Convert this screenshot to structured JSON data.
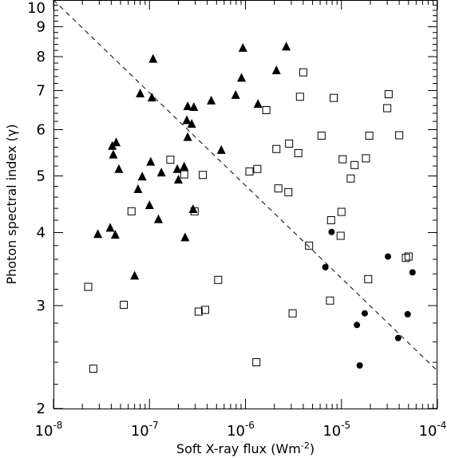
{
  "chart_data": {
    "type": "scatter",
    "title": "",
    "xlabel": "Soft X-ray flux  (Wm",
    "xlabel_sup": "-2",
    "xlabel_close": ")",
    "ylabel": "Photon spectral index (γ)",
    "x_scale": "log",
    "y_scale": "log",
    "xlim": [
      1e-08,
      0.0001
    ],
    "ylim": [
      2,
      10
    ],
    "x_ticks": [
      {
        "value": 1e-08,
        "base": "10",
        "exp": "-8"
      },
      {
        "value": 1e-07,
        "base": "10",
        "exp": "-7"
      },
      {
        "value": 1e-06,
        "base": "10",
        "exp": "-6"
      },
      {
        "value": 1e-05,
        "base": "10",
        "exp": "-5"
      },
      {
        "value": 0.0001,
        "base": "10",
        "exp": "-4"
      }
    ],
    "y_ticks": [
      {
        "value": 2,
        "label": "2"
      },
      {
        "value": 3,
        "label": "3"
      },
      {
        "value": 4,
        "label": "4"
      },
      {
        "value": 5,
        "label": "5"
      },
      {
        "value": 6,
        "label": "6"
      },
      {
        "value": 7,
        "label": "7"
      },
      {
        "value": 8,
        "label": "8"
      },
      {
        "value": 9,
        "label": "9"
      },
      {
        "value": 10,
        "label": "10"
      }
    ],
    "grid": false,
    "fit_line": {
      "style": "dashed",
      "points": [
        [
          1e-08,
          10.0
        ],
        [
          0.0001,
          2.32
        ]
      ]
    },
    "series": [
      {
        "marker": "filled-triangle",
        "color": "#000000",
        "points": [
          [
            1.09e-07,
            7.92
          ],
          [
            9.4e-07,
            8.27
          ],
          [
            2.66e-06,
            8.31
          ],
          [
            2.1e-06,
            7.57
          ],
          [
            9.1e-07,
            7.35
          ],
          [
            8e-08,
            6.91
          ],
          [
            1.06e-07,
            6.8
          ],
          [
            7.9e-07,
            6.87
          ],
          [
            2.5e-07,
            6.57
          ],
          [
            2.9e-07,
            6.55
          ],
          [
            4.4e-07,
            6.72
          ],
          [
            1.35e-06,
            6.63
          ],
          [
            2.45e-07,
            6.22
          ],
          [
            2.75e-07,
            6.13
          ],
          [
            2.5e-07,
            5.82
          ],
          [
            5.6e-07,
            5.53
          ],
          [
            4.5e-08,
            5.7
          ],
          [
            4.1e-08,
            5.62
          ],
          [
            4.2e-08,
            5.43
          ],
          [
            4.8e-08,
            5.13
          ],
          [
            1.03e-07,
            5.28
          ],
          [
            1.33e-07,
            5.06
          ],
          [
            1.95e-07,
            5.13
          ],
          [
            2.3e-07,
            5.18
          ],
          [
            8.4e-08,
            4.98
          ],
          [
            2e-07,
            4.92
          ],
          [
            7.6e-08,
            4.74
          ],
          [
            1e-07,
            4.45
          ],
          [
            2.85e-07,
            4.38
          ],
          [
            1.24e-07,
            4.21
          ],
          [
            3.9e-08,
            4.07
          ],
          [
            2.9e-08,
            3.97
          ],
          [
            4.4e-08,
            3.96
          ],
          [
            2.35e-07,
            3.92
          ],
          [
            7e-08,
            3.37
          ]
        ]
      },
      {
        "marker": "open-square",
        "color": "#000000",
        "points": [
          [
            4e-06,
            7.52
          ],
          [
            3.7e-06,
            6.83
          ],
          [
            8.3e-06,
            6.8
          ],
          [
            3.1e-05,
            6.9
          ],
          [
            3e-05,
            6.53
          ],
          [
            1.65e-06,
            6.48
          ],
          [
            6.2e-06,
            5.86
          ],
          [
            1.95e-05,
            5.86
          ],
          [
            4e-05,
            5.87
          ],
          [
            2.85e-06,
            5.68
          ],
          [
            3.55e-06,
            5.47
          ],
          [
            2.1e-06,
            5.56
          ],
          [
            1.03e-05,
            5.34
          ],
          [
            1.8e-05,
            5.36
          ],
          [
            1.37e-05,
            5.22
          ],
          [
            1.65e-07,
            5.33
          ],
          [
            1.1e-06,
            5.09
          ],
          [
            1.33e-06,
            5.14
          ],
          [
            3.6e-07,
            5.02
          ],
          [
            2.3e-07,
            5.03
          ],
          [
            1.25e-05,
            4.95
          ],
          [
            2.2e-06,
            4.76
          ],
          [
            2.8e-06,
            4.69
          ],
          [
            6.5e-08,
            4.35
          ],
          [
            2.95e-07,
            4.35
          ],
          [
            1e-05,
            4.34
          ],
          [
            7.8e-06,
            4.2
          ],
          [
            9.8e-06,
            3.95
          ],
          [
            4.6e-06,
            3.8
          ],
          [
            4.7e-05,
            3.62
          ],
          [
            5e-05,
            3.64
          ],
          [
            1.9e-05,
            3.33
          ],
          [
            5.2e-07,
            3.32
          ],
          [
            2.3e-08,
            3.23
          ],
          [
            7.6e-06,
            3.06
          ],
          [
            5.4e-08,
            3.01
          ],
          [
            3.8e-07,
            2.95
          ],
          [
            3.25e-07,
            2.93
          ],
          [
            3.1e-06,
            2.91
          ],
          [
            1.3e-06,
            2.4
          ],
          [
            2.6e-08,
            2.34
          ]
        ]
      },
      {
        "marker": "filled-circle",
        "color": "#000000",
        "points": [
          [
            7.9e-06,
            4.01
          ],
          [
            3.05e-05,
            3.64
          ],
          [
            6.8e-06,
            3.49
          ],
          [
            5.5e-05,
            3.42
          ],
          [
            1.75e-05,
            2.91
          ],
          [
            4.9e-05,
            2.9
          ],
          [
            1.45e-05,
            2.78
          ],
          [
            3.9e-05,
            2.64
          ],
          [
            1.55e-05,
            2.37
          ]
        ]
      }
    ]
  }
}
